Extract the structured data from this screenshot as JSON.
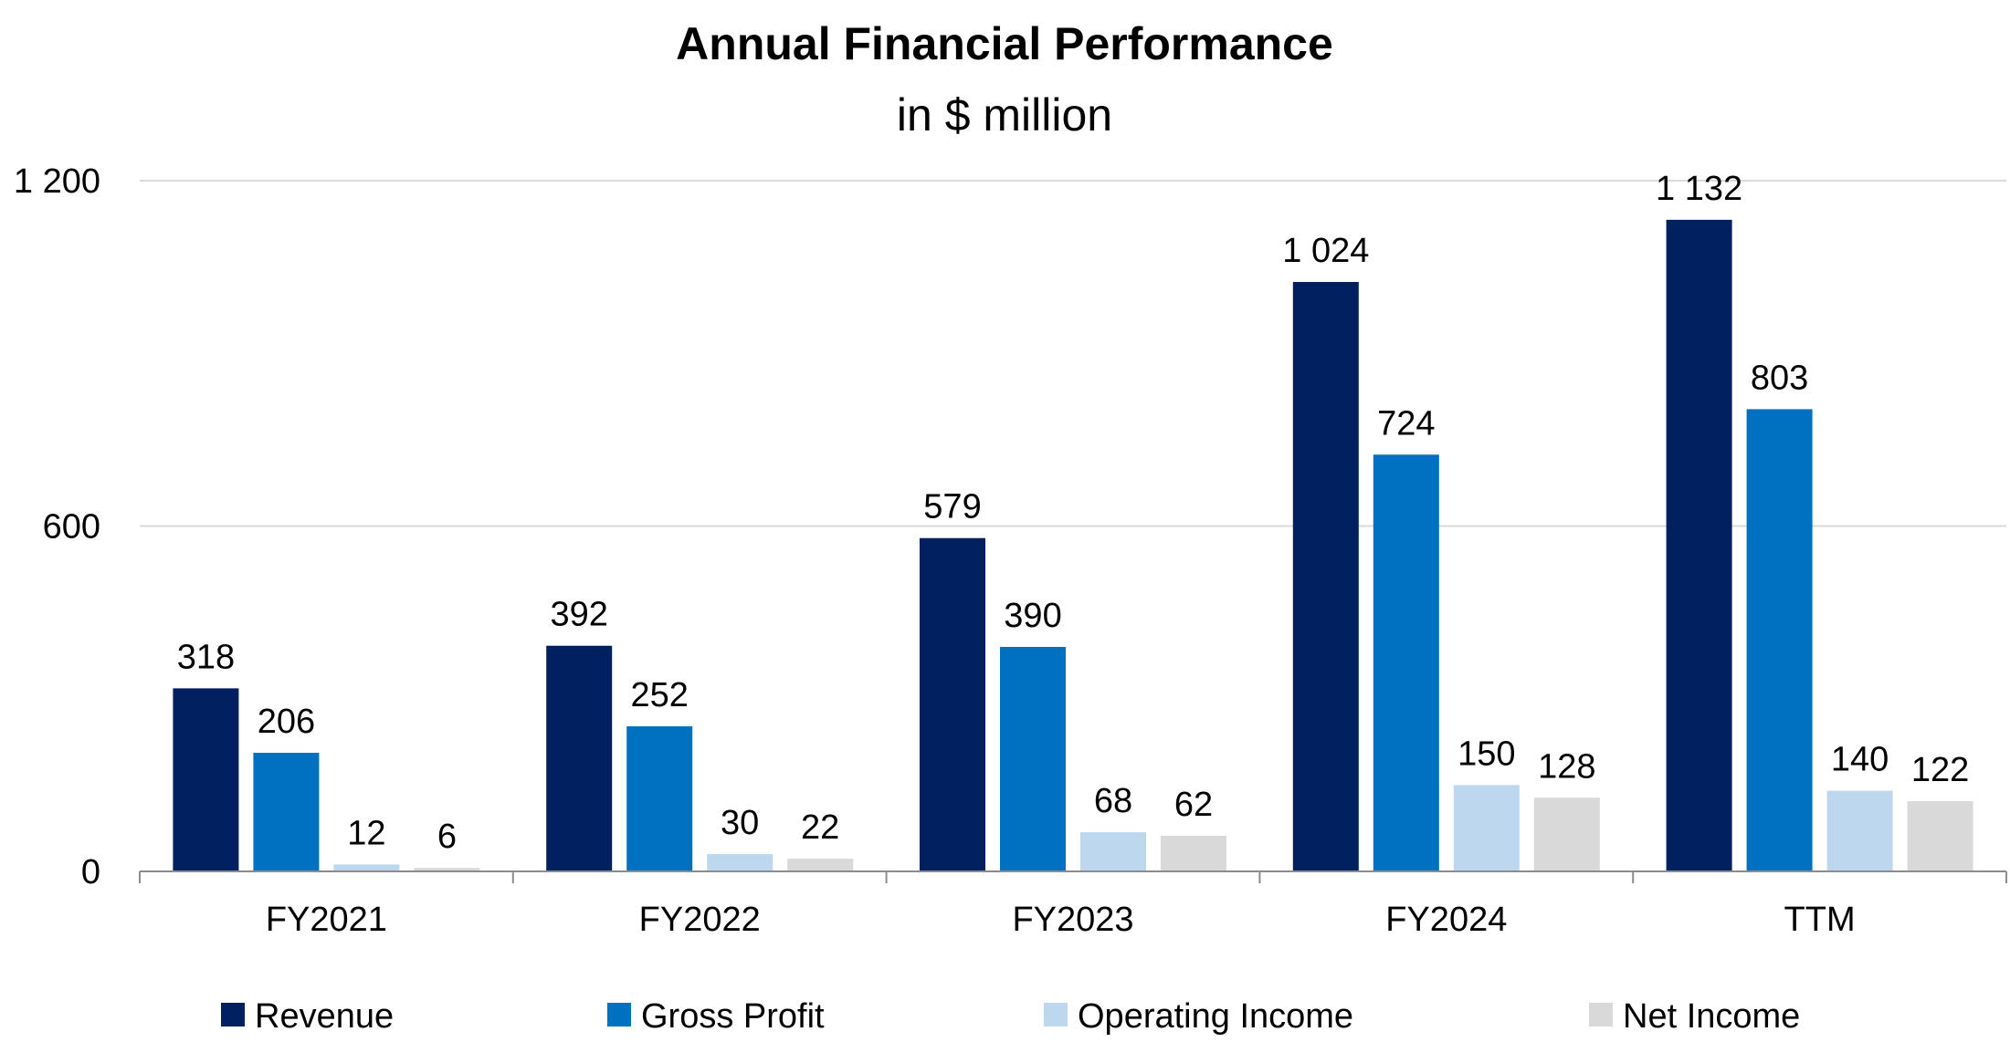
{
  "chart_data": {
    "type": "bar",
    "title": "Annual Financial Performance",
    "subtitle": "in $ million",
    "categories": [
      "FY2021",
      "FY2022",
      "FY2023",
      "FY2024",
      "TTM"
    ],
    "series": [
      {
        "name": "Revenue",
        "color": "#002060",
        "values": [
          318,
          392,
          579,
          1024,
          1132
        ],
        "labels": [
          "318",
          "392",
          "579",
          "1 024",
          "1 132"
        ]
      },
      {
        "name": "Gross Profit",
        "color": "#0070C0",
        "values": [
          206,
          252,
          390,
          724,
          803
        ],
        "labels": [
          "206",
          "252",
          "390",
          "724",
          "803"
        ]
      },
      {
        "name": "Operating Income",
        "color": "#BDD7EE",
        "values": [
          12,
          30,
          68,
          150,
          140
        ],
        "labels": [
          "12",
          "30",
          "68",
          "150",
          "140"
        ]
      },
      {
        "name": "Net Income",
        "color": "#D9D9D9",
        "values": [
          6,
          22,
          62,
          128,
          122
        ],
        "labels": [
          "6",
          "22",
          "62",
          "128",
          "122"
        ]
      }
    ],
    "yticks": [
      0,
      600,
      1200
    ],
    "ytick_labels": [
      "0",
      "600",
      "1 200"
    ],
    "ylim": [
      0,
      1200
    ],
    "grid": true,
    "legend_position": "bottom"
  }
}
